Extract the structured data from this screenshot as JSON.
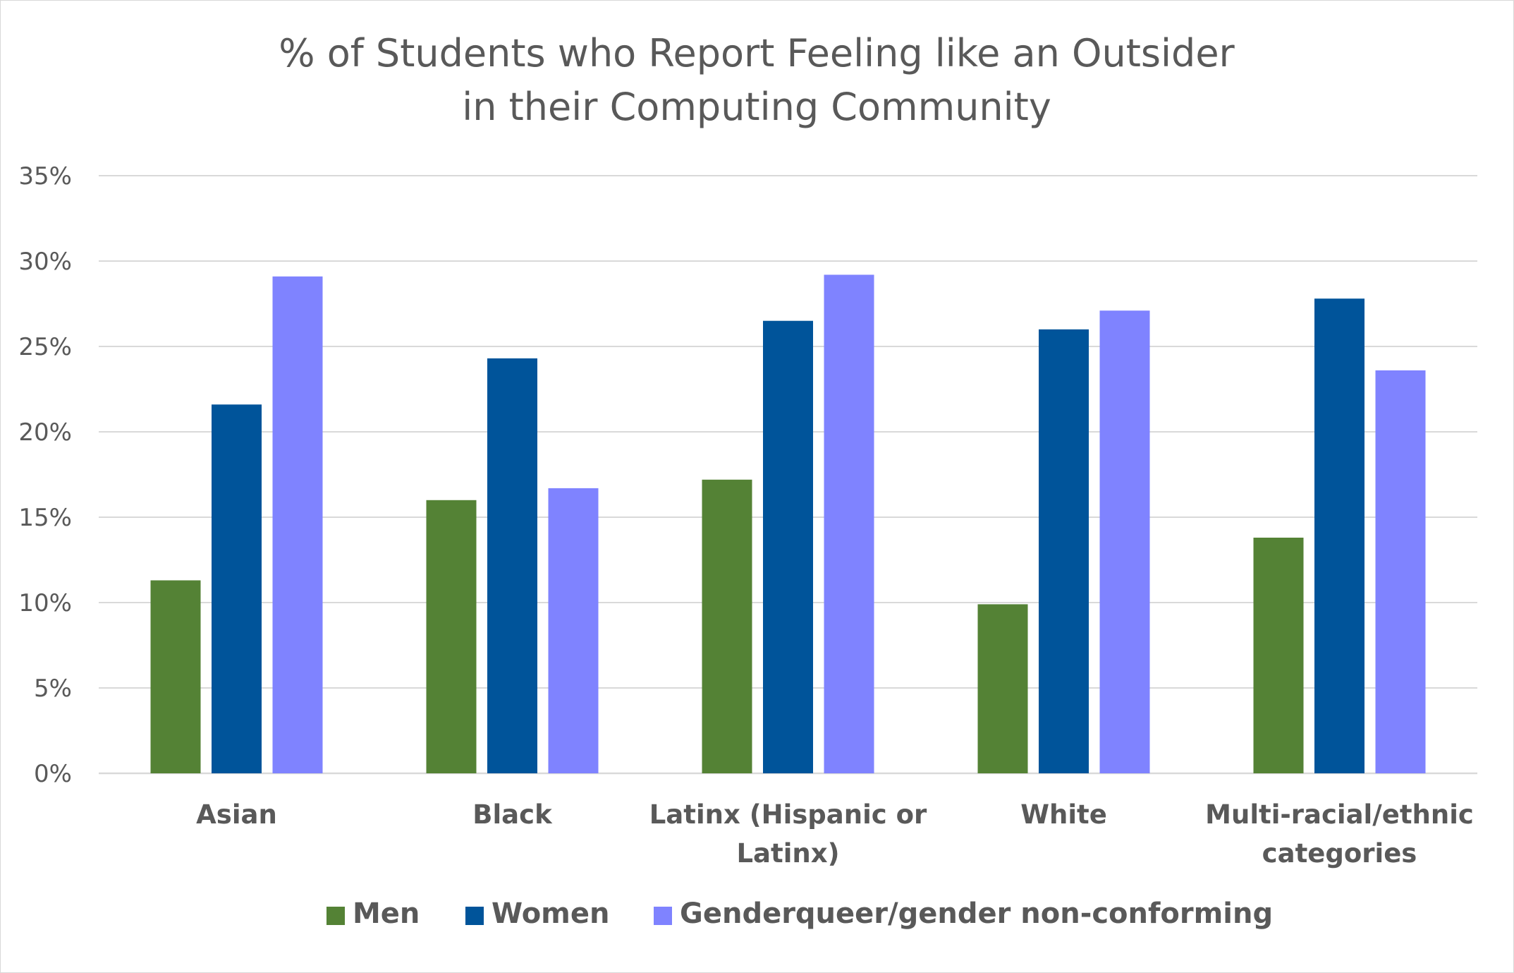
{
  "chart_data": {
    "type": "bar",
    "title_lines": [
      "% of Students who Report Feeling like an Outsider",
      "in their Computing Community"
    ],
    "categories": [
      [
        "Asian"
      ],
      [
        "Black"
      ],
      [
        "Latinx (Hispanic or",
        "Latinx)"
      ],
      [
        "White"
      ],
      [
        "Multi-racial/ethnic",
        "categories"
      ]
    ],
    "series": [
      {
        "name": "Men",
        "color": "#548235",
        "values": [
          11.3,
          16.0,
          17.2,
          9.9,
          13.8
        ]
      },
      {
        "name": "Women",
        "color": "#00549A",
        "values": [
          21.6,
          24.3,
          26.5,
          26.0,
          27.8
        ]
      },
      {
        "name": "Genderqueer/gender non-conforming",
        "color": "#7F83FF",
        "values": [
          29.1,
          16.7,
          29.2,
          27.1,
          23.6
        ]
      }
    ],
    "ylim": [
      0,
      35
    ],
    "yticks": [
      0,
      5,
      10,
      15,
      20,
      25,
      30,
      35
    ],
    "ytick_labels": [
      "0%",
      "5%",
      "10%",
      "15%",
      "20%",
      "25%",
      "30%",
      "35%"
    ],
    "grid": true,
    "gridline_color": "#d9d9d9",
    "legend_position": "bottom",
    "text_color": "#595959"
  }
}
